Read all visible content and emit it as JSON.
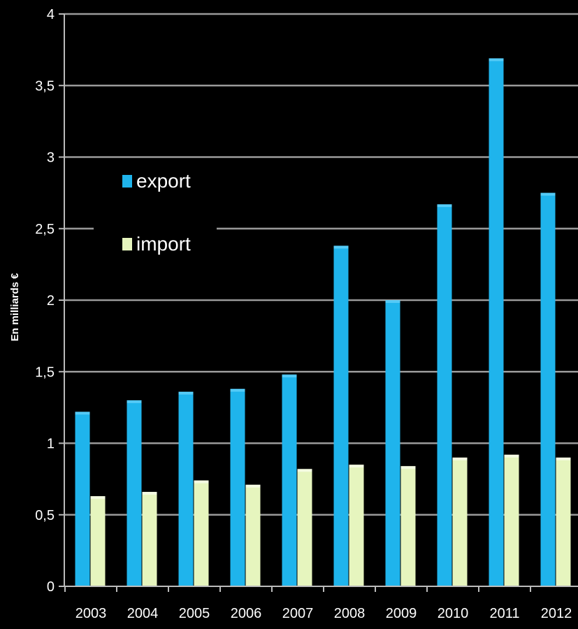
{
  "chart_data": {
    "type": "bar",
    "title": "",
    "xlabel": "",
    "ylabel": "En milliards €",
    "ylim": [
      0,
      4
    ],
    "yticks": [
      {
        "value": 0,
        "label": "0"
      },
      {
        "value": 0.5,
        "label": "0,5"
      },
      {
        "value": 1,
        "label": "1"
      },
      {
        "value": 1.5,
        "label": "1,5"
      },
      {
        "value": 2,
        "label": "2"
      },
      {
        "value": 2.5,
        "label": "2,5"
      },
      {
        "value": 3,
        "label": "3"
      },
      {
        "value": 3.5,
        "label": "3,5"
      },
      {
        "value": 4,
        "label": "4"
      }
    ],
    "categories": [
      "2003",
      "2004",
      "2005",
      "2006",
      "2007",
      "2008",
      "2009",
      "2010",
      "2011",
      "2012"
    ],
    "series": [
      {
        "name": "export",
        "color": "#1FB4EC",
        "values": [
          1.22,
          1.3,
          1.36,
          1.38,
          1.48,
          2.38,
          2.0,
          2.67,
          3.69,
          2.75
        ]
      },
      {
        "name": "import",
        "color": "#E6F5BE",
        "values": [
          0.63,
          0.66,
          0.74,
          0.71,
          0.82,
          0.85,
          0.84,
          0.9,
          0.92,
          0.9
        ]
      }
    ],
    "grid": true,
    "legend_position": "upper-left inside plot",
    "colors": {
      "background": "#000000",
      "grid": "#9a9a9a",
      "axis_text": "#ffffff"
    }
  }
}
